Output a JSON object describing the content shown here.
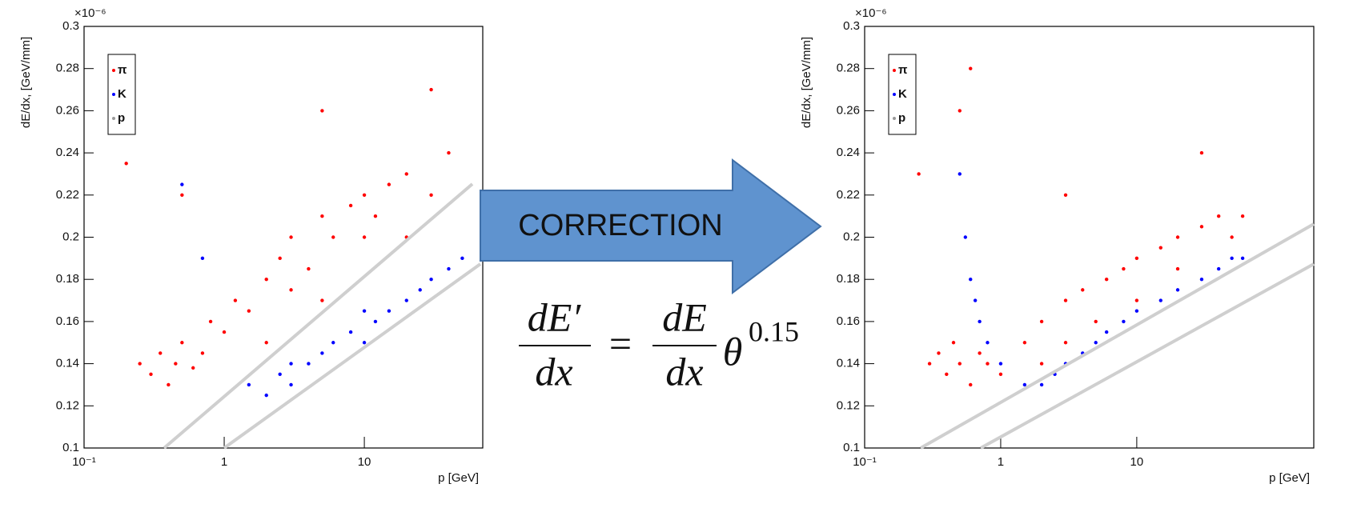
{
  "chart_data": [
    {
      "type": "scatter",
      "xscale": "log",
      "xlabel": "p [GeV]",
      "ylabel": "dE/dx, [GeV/mm]",
      "y_multiplier": "×10⁻⁶",
      "xlim": [
        0.1,
        70
      ],
      "ylim": [
        0.1,
        0.3
      ],
      "xticks": [
        {
          "value": 0.1,
          "label": "10⁻¹"
        },
        1,
        10
      ],
      "yticks": [
        0.1,
        0.12,
        0.14,
        0.16,
        0.18,
        0.2,
        0.22,
        0.24,
        0.26,
        0.28,
        0.3
      ],
      "series": [
        {
          "name": "π",
          "color": "#ff0000",
          "x": [
            0.25,
            0.3,
            0.35,
            0.4,
            0.45,
            0.5,
            0.6,
            0.7,
            0.8,
            1,
            1.2,
            1.5,
            2,
            2,
            2.5,
            3,
            3,
            4,
            5,
            5,
            6,
            8,
            10,
            10,
            12,
            15,
            20,
            20,
            30,
            40,
            0.2,
            0.5,
            5,
            30
          ],
          "y": [
            0.14,
            0.135,
            0.145,
            0.13,
            0.14,
            0.15,
            0.138,
            0.145,
            0.16,
            0.155,
            0.17,
            0.165,
            0.18,
            0.15,
            0.19,
            0.175,
            0.2,
            0.185,
            0.21,
            0.17,
            0.2,
            0.215,
            0.2,
            0.22,
            0.21,
            0.225,
            0.2,
            0.23,
            0.22,
            0.24,
            0.235,
            0.22,
            0.26,
            0.27
          ]
        },
        {
          "name": "K",
          "color": "#0000ff",
          "x": [
            1.5,
            2,
            2.5,
            3,
            3,
            4,
            5,
            6,
            8,
            10,
            10,
            12,
            15,
            20,
            25,
            30,
            40,
            50,
            0.5,
            0.7
          ],
          "y": [
            0.13,
            0.125,
            0.135,
            0.13,
            0.14,
            0.14,
            0.145,
            0.15,
            0.155,
            0.15,
            0.165,
            0.16,
            0.165,
            0.17,
            0.175,
            0.18,
            0.185,
            0.19,
            0.225,
            0.19
          ]
        },
        {
          "name": "p",
          "color": "#999999",
          "x": [],
          "y": []
        }
      ]
    },
    {
      "type": "scatter",
      "xscale": "log",
      "xlabel": "p [GeV]",
      "ylabel": "dE/dx, [GeV/mm]",
      "y_multiplier": "×10⁻⁶",
      "xlim": [
        0.1,
        200
      ],
      "ylim": [
        0.1,
        0.3
      ],
      "xticks": [
        {
          "value": 0.1,
          "label": "10⁻¹"
        },
        1,
        10
      ],
      "yticks": [
        0.1,
        0.12,
        0.14,
        0.16,
        0.18,
        0.2,
        0.22,
        0.24,
        0.26,
        0.28,
        0.3
      ],
      "series": [
        {
          "name": "π",
          "color": "#ff0000",
          "x": [
            0.3,
            0.35,
            0.4,
            0.45,
            0.5,
            0.6,
            0.7,
            0.8,
            1,
            1.5,
            2,
            2,
            3,
            3,
            4,
            5,
            6,
            8,
            10,
            10,
            15,
            20,
            20,
            30,
            40,
            50,
            60,
            0.25,
            0.5,
            3,
            0.6,
            30
          ],
          "y": [
            0.14,
            0.145,
            0.135,
            0.15,
            0.14,
            0.13,
            0.145,
            0.14,
            0.135,
            0.15,
            0.16,
            0.14,
            0.17,
            0.15,
            0.175,
            0.16,
            0.18,
            0.185,
            0.19,
            0.17,
            0.195,
            0.2,
            0.185,
            0.205,
            0.21,
            0.2,
            0.21,
            0.23,
            0.26,
            0.22,
            0.28,
            0.24
          ]
        },
        {
          "name": "K",
          "color": "#0000ff",
          "x": [
            0.5,
            0.55,
            0.6,
            0.65,
            0.7,
            0.8,
            1,
            1.5,
            2,
            2.5,
            3,
            4,
            5,
            6,
            8,
            10,
            15,
            20,
            30,
            40,
            50,
            60
          ],
          "y": [
            0.23,
            0.2,
            0.18,
            0.17,
            0.16,
            0.15,
            0.14,
            0.13,
            0.13,
            0.135,
            0.14,
            0.145,
            0.15,
            0.155,
            0.16,
            0.165,
            0.17,
            0.175,
            0.18,
            0.185,
            0.19,
            0.19
          ]
        },
        {
          "name": "p",
          "color": "#999999",
          "x": [],
          "y": []
        }
      ]
    }
  ],
  "arrow_label": "CORRECTION",
  "formula": {
    "lhs_numerator": "dE′",
    "lhs_denominator": "dx",
    "equals": "=",
    "rhs_numerator": "dE",
    "rhs_denominator": "dx",
    "factor": "θ",
    "exponent": "0.15"
  }
}
